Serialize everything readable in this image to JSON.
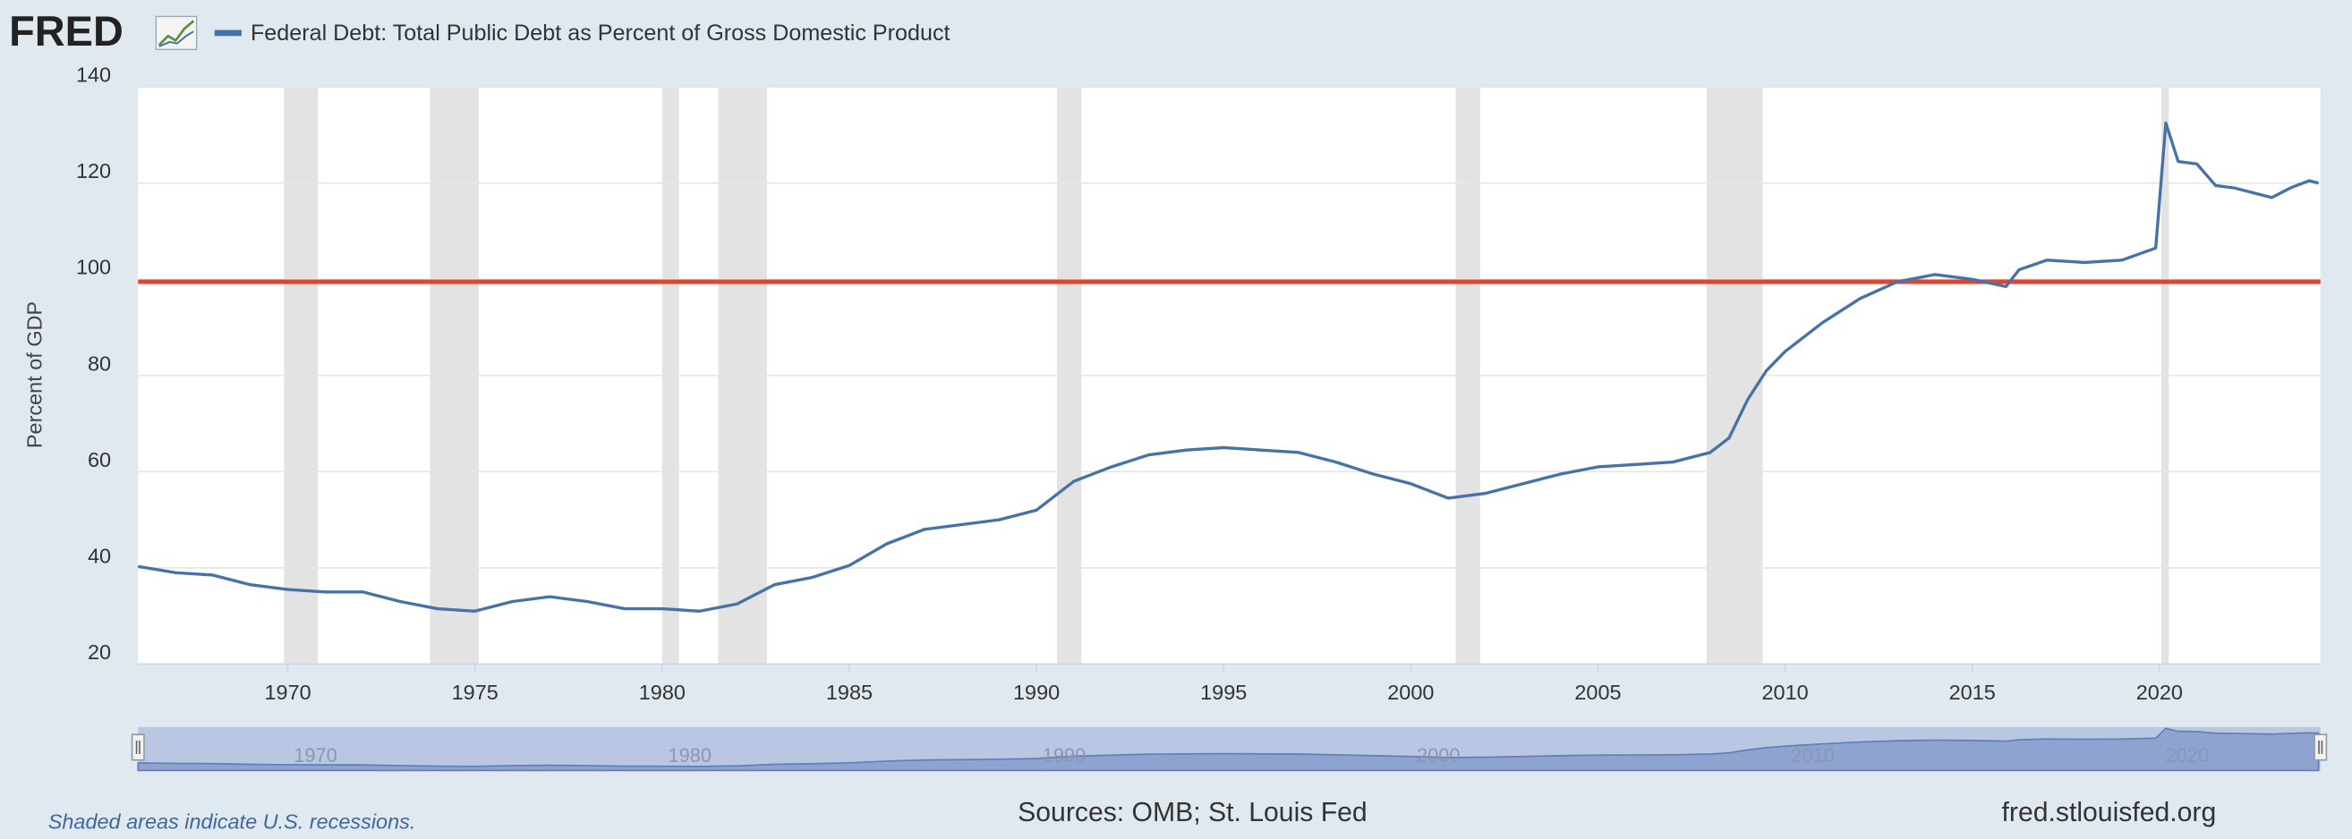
{
  "logo": "FRED",
  "chart_data": {
    "type": "line",
    "y_label": "Percent of GDP",
    "x": [
      1966,
      1967,
      1968,
      1969,
      1970,
      1971,
      1972,
      1973,
      1974,
      1975,
      1976,
      1977,
      1978,
      1979,
      1980,
      1981,
      1982,
      1983,
      1984,
      1985,
      1986,
      1987,
      1988,
      1989,
      1990,
      1991,
      1992,
      1993,
      1994,
      1995,
      1996,
      1997,
      1998,
      1999,
      2000,
      2001,
      2002,
      2003,
      2004,
      2005,
      2006,
      2007,
      2008,
      2008.5,
      2009,
      2009.5,
      2010,
      2011,
      2012,
      2013,
      2014,
      2015,
      2015.9,
      2016.25,
      2017,
      2018,
      2019,
      2019.9,
      2020.17,
      2020.5,
      2021,
      2021.5,
      2022,
      2023,
      2023.5,
      2024,
      2024.25
    ],
    "series": [
      {
        "name": "Federal Debt: Total Public Debt as Percent of Gross Domestic Product",
        "color": "#4572a7",
        "values": [
          40.3,
          39,
          38.5,
          36.5,
          35.5,
          35,
          35,
          33,
          31.5,
          31,
          33,
          34,
          33,
          31.5,
          31.5,
          31,
          32.5,
          36.5,
          38,
          40.5,
          45,
          48,
          49,
          50,
          52,
          58,
          61,
          63.5,
          64.5,
          65,
          64.5,
          64,
          62,
          59.5,
          57.5,
          54.5,
          55.5,
          57.5,
          59.5,
          61,
          61.5,
          62,
          64,
          67,
          75,
          81,
          85,
          91,
          96,
          99.5,
          101,
          100,
          98.5,
          102,
          104,
          103.5,
          104,
          106.5,
          132.5,
          124.5,
          124,
          119.5,
          119,
          117,
          119,
          120.5,
          120
        ]
      }
    ],
    "reference_line": {
      "value": 99.5,
      "color": "#e8412c"
    },
    "recessions": [
      [
        1969.9,
        1970.8
      ],
      [
        1973.8,
        1975.1
      ],
      [
        1980.0,
        1980.45
      ],
      [
        1981.5,
        1982.8
      ],
      [
        1990.55,
        1991.2
      ],
      [
        2001.2,
        2001.85
      ],
      [
        2007.9,
        2009.4
      ],
      [
        2020.05,
        2020.25
      ]
    ],
    "xlim": [
      1966,
      2024.3
    ],
    "xticks": [
      1970,
      1975,
      1980,
      1985,
      1990,
      1995,
      2000,
      2005,
      2010,
      2015,
      2020
    ],
    "ylim": [
      20,
      140
    ],
    "yticks": [
      20,
      40,
      60,
      80,
      100,
      120,
      140
    ],
    "grid": true,
    "navigator_xticks": [
      1970,
      1980,
      1990,
      2000,
      2010,
      2020
    ]
  },
  "footer": {
    "note": "Shaded areas indicate U.S. recessions.",
    "sources": "Sources: OMB; St. Louis Fed",
    "site": "fred.stlouisfed.org"
  }
}
